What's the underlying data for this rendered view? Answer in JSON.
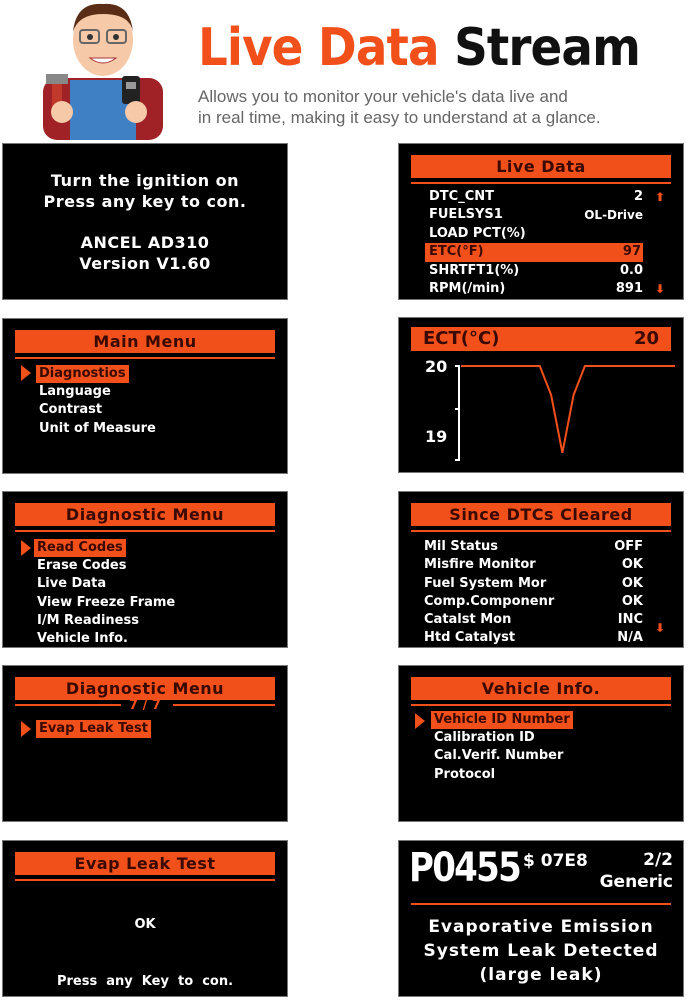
{
  "header": {
    "title_part1": "Live Data",
    "title_part2": "Stream",
    "subtitle_line1": "Allows you to monitor your vehicle's data live and",
    "subtitle_line2": "in real time, making it easy to understand at a glance."
  },
  "colors": {
    "accent": "#f2501b",
    "screen": "#000000",
    "header_text": "#3a0a00"
  },
  "screens": {
    "startup": {
      "line1": "Turn the ignition on",
      "line2": "Press any key to con.",
      "line3": "ANCEL AD310",
      "line4": "Version V1.60"
    },
    "main_menu": {
      "title": "Main Menu",
      "items": [
        "Diagnostios",
        "Language",
        "Contrast",
        "Unit of Measure"
      ],
      "selected": 0
    },
    "diag_menu": {
      "title": "Diagnostic Menu",
      "items": [
        "Read Codes",
        "Erase Codes",
        "Live Data",
        "View Freeze Frame",
        "I/M Readiness",
        "Vehicle Info."
      ],
      "selected": 0
    },
    "diag_menu2": {
      "title": "Diagnostic Menu",
      "page": "7 / 7",
      "items": [
        "Evap Leak Test"
      ],
      "selected": 0
    },
    "evap": {
      "title": "Evap Leak Test",
      "result": "OK",
      "prompt": "Press  any  Key  to  con."
    },
    "live_data": {
      "title": "Live Data",
      "rows": [
        {
          "label": "DTC_CNT",
          "value": "2"
        },
        {
          "label": "FUELSYS1",
          "value": "OL-Drive"
        },
        {
          "label": "LOAD PCT(%)",
          "value": ""
        },
        {
          "label": "ETC(°F)",
          "value": "97"
        },
        {
          "label": "SHRTFT1(%)",
          "value": "0.0"
        },
        {
          "label": "RPM(/min)",
          "value": "891"
        }
      ],
      "selected": 3
    },
    "ect_graph": {
      "label": "ECT(°C)",
      "value": "20"
    },
    "since_dtc": {
      "title": "Since DTCs Cleared",
      "rows": [
        {
          "label": "Mil Status",
          "value": "OFF"
        },
        {
          "label": "Misfire Monitor",
          "value": "OK"
        },
        {
          "label": "Fuel System Mor",
          "value": "OK"
        },
        {
          "label": "Comp.Componenr",
          "value": "OK"
        },
        {
          "label": "Catalst Mon",
          "value": "INC"
        },
        {
          "label": "Htd Catalyst",
          "value": "N/A"
        }
      ]
    },
    "vehicle_info": {
      "title": "Vehicle Info.",
      "items": [
        "Vehicle ID Number",
        "Calibration ID",
        "Cal.Verif. Number",
        "Protocol"
      ],
      "selected": 0
    },
    "dtc": {
      "code": "P0455",
      "ecu": "$ 07E8",
      "count": "2/2",
      "type": "Generic",
      "desc1": "Evaporative Emission",
      "desc2": "System Leak Detected",
      "desc3": "(large leak)"
    }
  },
  "chart_data": {
    "type": "line",
    "yticks": [
      "20",
      "19"
    ],
    "ylim": [
      18.7,
      20
    ],
    "y": [
      20,
      20,
      20,
      20,
      20,
      20,
      20,
      20,
      19.6,
      18.8,
      19.6,
      20,
      20,
      20,
      20,
      20,
      20,
      20,
      20,
      20
    ]
  }
}
